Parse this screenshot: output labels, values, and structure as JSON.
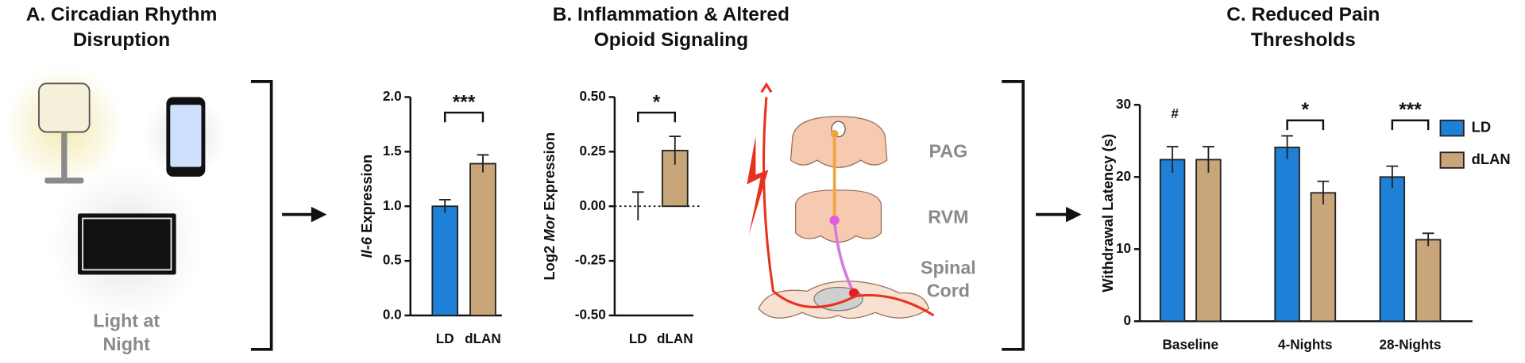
{
  "panels": {
    "a": {
      "title": [
        "A. Circadian Rhythm",
        "Disruption"
      ],
      "label": [
        "Light at",
        "Night"
      ]
    },
    "b": {
      "title": [
        "B. Inflammation & Altered",
        "Opioid Signaling"
      ],
      "regions": [
        "PAG",
        "RVM",
        "Spinal",
        "Cord"
      ]
    },
    "c": {
      "title": [
        "C. Reduced Pain",
        "Thresholds"
      ]
    }
  },
  "chart_data": [
    {
      "type": "bar",
      "ylabel": {
        "gene": "Il-6",
        "text": " Expression"
      },
      "categories": [
        "LD",
        "dLAN"
      ],
      "values": [
        1.0,
        1.39
      ],
      "errors": [
        0.06,
        0.08
      ],
      "colors": [
        "#1f80d8",
        "#c9a67a"
      ],
      "ylim": [
        0,
        2
      ],
      "yticks": [
        {
          "value": 0,
          "label": "0.0"
        },
        {
          "value": 0.5,
          "label": "0.5"
        },
        {
          "value": 1,
          "label": "1.0"
        },
        {
          "value": 1.5,
          "label": "1.5"
        },
        {
          "value": 2,
          "label": "2.0"
        }
      ],
      "annotation": "***"
    },
    {
      "type": "bar",
      "ylabel": {
        "prefix": "Log2 ",
        "gene": "Mor",
        "text": " Expression"
      },
      "categories": [
        "LD",
        "dLAN"
      ],
      "values": [
        0.0,
        0.255
      ],
      "errors": [
        0.065,
        0.065
      ],
      "colors": [
        "#1f80d8",
        "#c9a67a"
      ],
      "ylim": [
        -0.5,
        0.5
      ],
      "yticks": [
        {
          "value": -0.5,
          "label": "-0.50"
        },
        {
          "value": -0.25,
          "label": "-0.25"
        },
        {
          "value": 0,
          "label": "0.00"
        },
        {
          "value": 0.25,
          "label": "0.25"
        },
        {
          "value": 0.5,
          "label": "0.50"
        }
      ],
      "zero_line": true,
      "annotation": "*"
    },
    {
      "type": "grouped_bar",
      "ylabel": "Withdrawal Latency (s)",
      "categories": [
        "Baseline",
        "4-Nights",
        "28-Nights"
      ],
      "series": [
        {
          "name": "LD",
          "color": "#1f80d8",
          "values": [
            22.4,
            24.1,
            20.0
          ],
          "errors": [
            1.8,
            1.6,
            1.5
          ]
        },
        {
          "name": "dLAN",
          "color": "#c9a67a",
          "values": [
            22.4,
            17.8,
            11.3
          ],
          "errors": [
            1.8,
            1.6,
            0.9
          ]
        }
      ],
      "ylim": [
        0,
        30
      ],
      "yticks": [
        0,
        10,
        20,
        30
      ],
      "annotations": [
        "#",
        "*",
        "***"
      ],
      "brackets": [
        false,
        true,
        true
      ],
      "legend": "right"
    }
  ]
}
